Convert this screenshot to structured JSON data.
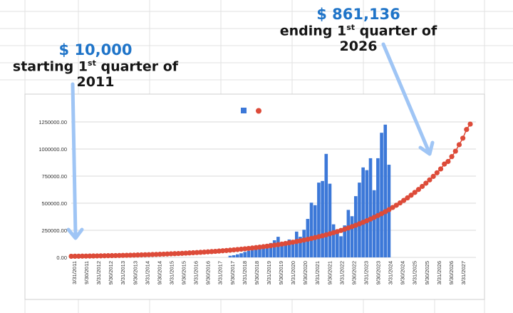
{
  "annotations": {
    "start": {
      "amount": "$ 10,000",
      "text_pre": "starting 1",
      "sup": "st",
      "text_post": " quarter of 2011"
    },
    "end": {
      "amount": "$ 861,136",
      "text_pre": "ending 1",
      "sup": "st",
      "text_post": " quarter of 2026"
    }
  },
  "colors": {
    "bars": "#3c78d8",
    "line": "#dd4b39",
    "arrow": "#9fc5f5",
    "amount_text": "#1f74c8"
  },
  "chart_data": {
    "type": "bar",
    "overlay": "line",
    "legend": {
      "placement": "top-center",
      "entries": [
        "",
        ""
      ]
    },
    "grid": true,
    "ylim": [
      0,
      1250000
    ],
    "yticks": [
      "0.00",
      "250000.00",
      "500000.00",
      "750000.00",
      "1000000.00",
      "1250000.00"
    ],
    "xticks": [
      "3/31/2011",
      "9/30/2011",
      "3/31/2012",
      "9/30/2012",
      "3/31/2013",
      "9/30/2013",
      "3/31/2014",
      "9/30/2014",
      "3/31/2015",
      "9/30/2015",
      "3/31/2016",
      "9/30/2016",
      "3/31/2017",
      "9/30/2017",
      "3/31/2018",
      "9/30/2018",
      "3/31/2019",
      "9/30/2019",
      "3/31/2020",
      "9/30/2020",
      "3/31/2021",
      "9/30/2021",
      "3/31/2022",
      "9/30/2022",
      "3/31/2023",
      "9/30/2023",
      "3/31/2024",
      "9/30/2024",
      "3/31/2025",
      "9/30/2025",
      "3/31/2026",
      "9/30/2026",
      "3/31/2027"
    ],
    "bar_values": [
      0,
      0,
      0,
      0,
      0,
      0,
      0,
      0,
      0,
      0,
      0,
      0,
      0,
      0,
      0,
      0,
      0,
      0,
      0,
      0,
      0,
      0,
      0,
      0,
      0,
      0,
      0,
      0,
      0,
      0,
      0,
      0,
      0,
      0,
      0,
      0,
      0,
      0,
      0,
      0,
      0,
      0,
      0,
      15000,
      20000,
      28000,
      38000,
      50000,
      60000,
      70000,
      80000,
      92000,
      108000,
      122000,
      133000,
      158000,
      190000,
      120000,
      145000,
      165000,
      160000,
      238000,
      190000,
      255000,
      355000,
      505000,
      482000,
      690000,
      705000,
      955000,
      680000,
      305000,
      245000,
      195000,
      295000,
      438000,
      380000,
      565000,
      690000,
      830000,
      805000,
      915000,
      620000,
      915000,
      1150000,
      1225000,
      855000,
      0,
      0,
      0,
      0,
      0,
      0
    ],
    "line_values": [
      10000,
      10450,
      10920,
      11410,
      11920,
      12460,
      13020,
      13610,
      14220,
      14860,
      15530,
      16230,
      16960,
      17720,
      18520,
      19350,
      20220,
      21130,
      22090,
      23080,
      24120,
      25200,
      26340,
      27520,
      28760,
      30060,
      31410,
      32820,
      34300,
      35840,
      37450,
      39140,
      40900,
      42740,
      44670,
      46680,
      48780,
      50970,
      53270,
      55660,
      58170,
      60780,
      63520,
      66380,
      69370,
      72490,
      75750,
      79160,
      82720,
      86450,
      90330,
      94400,
      98650,
      103080,
      107720,
      112570,
      117640,
      122940,
      128470,
      134250,
      140290,
      146600,
      153200,
      160100,
      167300,
      174800,
      182700,
      190900,
      199500,
      208500,
      217900,
      227700,
      237900,
      248600,
      259800,
      271500,
      283700,
      296500,
      309800,
      323800,
      338400,
      353600,
      369500,
      386100,
      403500,
      421700,
      440600,
      460500,
      481200,
      502900,
      525500,
      549200,
      573900,
      599700,
      626700,
      654900,
      684400,
      715200,
      747400,
      781000,
      816200,
      861136,
      885000,
      930000,
      980000,
      1040000,
      1100000,
      1180000,
      1230000
    ]
  }
}
